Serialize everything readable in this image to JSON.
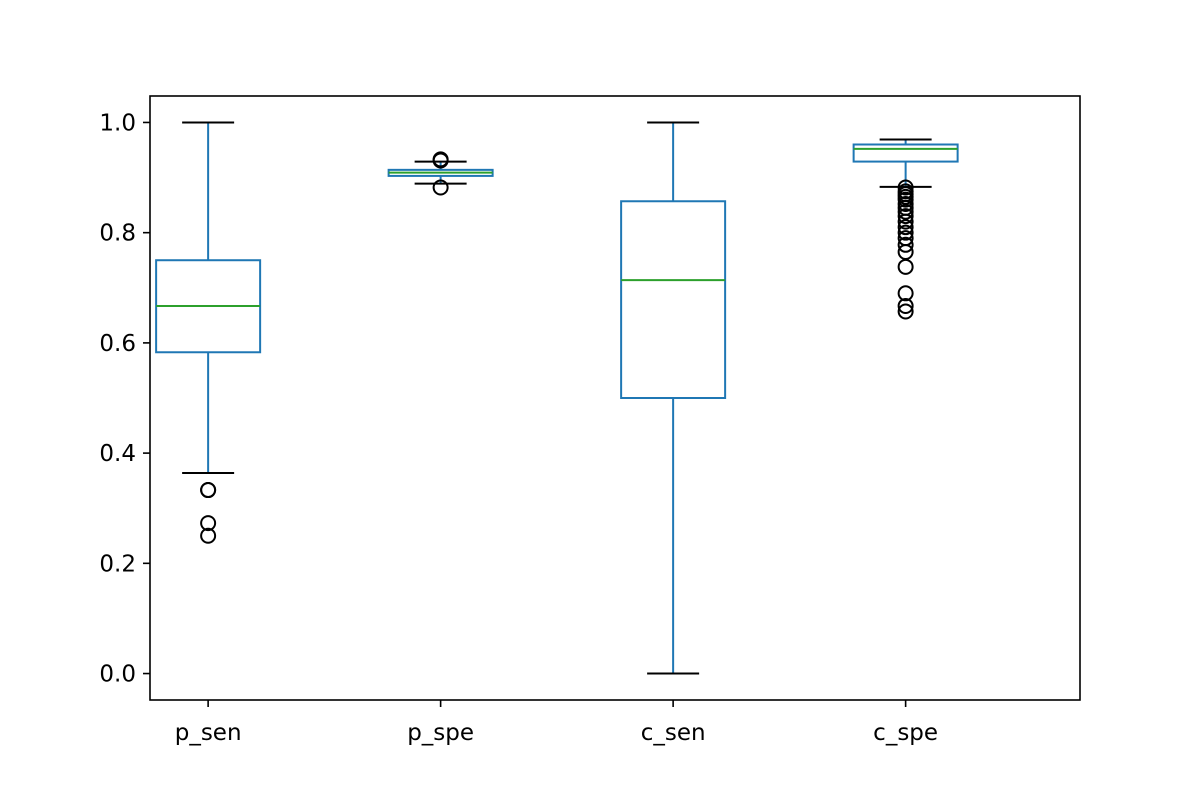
{
  "chart_data": {
    "type": "box",
    "title": "",
    "xlabel": "",
    "ylabel": "",
    "ylim": [
      -0.048,
      1.048
    ],
    "yticks": [
      0.0,
      0.2,
      0.4,
      0.6,
      0.8,
      1.0
    ],
    "ytick_labels": [
      "0.0",
      "0.2",
      "0.4",
      "0.6",
      "0.8",
      "1.0"
    ],
    "grid": false,
    "categories": [
      "p_sen",
      "p_spe",
      "c_sen",
      "c_spe"
    ],
    "series": [
      {
        "category": "p_sen",
        "whisker_low": 0.364,
        "q1": 0.583,
        "median": 0.667,
        "q3": 0.75,
        "whisker_high": 1.0,
        "outliers": [
          0.333,
          0.333,
          0.273,
          0.25
        ]
      },
      {
        "category": "p_spe",
        "whisker_low": 0.889,
        "q1": 0.903,
        "median": 0.909,
        "q3": 0.914,
        "whisker_high": 0.929,
        "outliers": [
          0.933,
          0.931,
          0.882
        ]
      },
      {
        "category": "c_sen",
        "whisker_low": 0.0,
        "q1": 0.5,
        "median": 0.714,
        "q3": 0.857,
        "whisker_high": 1.0,
        "outliers": []
      },
      {
        "category": "c_spe",
        "whisker_low": 0.883,
        "q1": 0.929,
        "median": 0.952,
        "q3": 0.96,
        "whisker_high": 0.969,
        "outliers": [
          0.882,
          0.875,
          0.87,
          0.865,
          0.86,
          0.852,
          0.845,
          0.838,
          0.83,
          0.82,
          0.81,
          0.8,
          0.79,
          0.778,
          0.765,
          0.738,
          0.69,
          0.667,
          0.657
        ]
      }
    ],
    "colors": {
      "box": "#1f77b4",
      "median": "#2ca02c",
      "caps": "#000000",
      "outliers": "#000000",
      "axes": "#000000"
    }
  }
}
